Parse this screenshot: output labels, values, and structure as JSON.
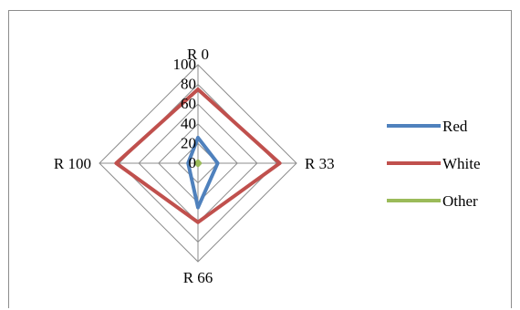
{
  "chart_data": {
    "type": "radar",
    "categories": [
      "R 0",
      "R 33",
      "R 66",
      "R 100"
    ],
    "axis": {
      "min": 0,
      "max": 100,
      "step": 20,
      "ticks": [
        "0",
        "20",
        "40",
        "60",
        "80",
        "100"
      ]
    },
    "series": [
      {
        "name": "Red",
        "values": [
          26,
          20,
          45,
          10
        ],
        "color": "#4F81BD"
      },
      {
        "name": "White",
        "values": [
          75,
          83,
          60,
          83
        ],
        "color": "#C0504D"
      },
      {
        "name": "Other",
        "values": [
          2,
          2,
          2,
          2
        ],
        "color": "#9BBB59"
      }
    ],
    "grid": true,
    "legend_position": "right"
  }
}
